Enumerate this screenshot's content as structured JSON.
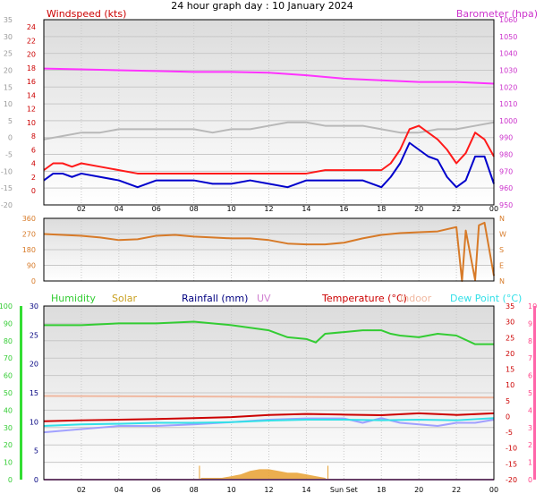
{
  "title": "24 hour graph day : 10 January 2024",
  "colors": {
    "windspeed": "#ff1a1a",
    "windavg": "#0000cc",
    "barometer": "#ff33ff",
    "tempapp": "#b8b8b8",
    "winddir": "#d77a28",
    "humidity": "#33cc33",
    "solar": "#e8a030",
    "rainfall": "#000080",
    "uv": "#d080d0",
    "temperature": "#cc0000",
    "indoor": "#f0b8a0",
    "dewpoint": "#33e0e8",
    "tempblue": "#a0a0ff"
  },
  "x_ticks": [
    "02",
    "04",
    "06",
    "08",
    "10",
    "12",
    "14",
    "16",
    "18",
    "20",
    "22",
    "00"
  ],
  "chart_data": [
    {
      "type": "line",
      "title": "Windspeed (kts) / Barometer (hpa)",
      "left_label": "Windspeed (kts)",
      "right_label": "Barometer (hpa)",
      "outer_left_ticks": [
        "35",
        "30",
        "25",
        "20",
        "15",
        "10",
        "5",
        "0",
        "-5",
        "-10",
        "-15",
        "-20"
      ],
      "inner_left_ticks": [
        "24",
        "22",
        "20",
        "18",
        "16",
        "14",
        "12",
        "10",
        "8",
        "6",
        "4",
        "2",
        "0"
      ],
      "right_ticks": [
        "1060",
        "1050",
        "1040",
        "1030",
        "1020",
        "1010",
        "1000",
        "990",
        "980",
        "970",
        "960",
        "950"
      ],
      "y_range_kts": [
        0,
        25
      ],
      "y_range_hpa": [
        950,
        1060
      ],
      "series": [
        {
          "name": "Barometer",
          "axis": "hpa",
          "x": [
            0,
            2,
            4,
            6,
            8,
            10,
            12,
            14,
            16,
            18,
            20,
            22,
            24
          ],
          "values": [
            1031,
            1030.5,
            1030,
            1029.5,
            1029,
            1029,
            1028.5,
            1027,
            1025,
            1024,
            1023,
            1023,
            1022
          ]
        },
        {
          "name": "Temp (grey)",
          "axis": "kts",
          "x": [
            0,
            1,
            2,
            3,
            4,
            5,
            6,
            7,
            8,
            9,
            10,
            11,
            12,
            13,
            14,
            15,
            16,
            17,
            18,
            19,
            20,
            21,
            22,
            23,
            24
          ],
          "values": [
            7.5,
            8,
            8.5,
            8.5,
            9,
            9,
            9,
            9,
            9,
            8.5,
            9,
            9,
            9.5,
            10,
            10,
            9.5,
            9.5,
            9.5,
            9,
            8.5,
            8.5,
            9,
            9,
            9.5,
            10
          ]
        },
        {
          "name": "Wind gust",
          "axis": "kts",
          "x": [
            0,
            0.5,
            1,
            1.5,
            2,
            3,
            4,
            5,
            6,
            7,
            8,
            9,
            10,
            11,
            12,
            13,
            14,
            15,
            16,
            17,
            18,
            18.5,
            19,
            19.5,
            20,
            20.5,
            21,
            21.5,
            22,
            22.5,
            23,
            23.5,
            24
          ],
          "values": [
            3,
            4,
            4,
            3.5,
            4,
            3.5,
            3,
            2.5,
            2.5,
            2.5,
            2.5,
            2.5,
            2.5,
            2.5,
            2.5,
            2.5,
            2.5,
            3,
            3,
            3,
            3,
            4,
            6,
            9,
            9.5,
            8.5,
            7.5,
            6,
            4,
            5.5,
            8.5,
            7.5,
            5
          ]
        },
        {
          "name": "Wind average",
          "axis": "kts",
          "x": [
            0,
            0.5,
            1,
            1.5,
            2,
            3,
            4,
            5,
            6,
            7,
            8,
            9,
            10,
            11,
            12,
            13,
            14,
            15,
            16,
            17,
            18,
            18.5,
            19,
            19.5,
            20,
            20.5,
            21,
            21.5,
            22,
            22.5,
            23,
            23.5,
            24
          ],
          "values": [
            1.5,
            2.5,
            2.5,
            2,
            2.5,
            2,
            1.5,
            0.5,
            1.5,
            1.5,
            1.5,
            1,
            1,
            1.5,
            1,
            0.5,
            1.5,
            1.5,
            1.5,
            1.5,
            0.5,
            2,
            4,
            7,
            6,
            5,
            4.5,
            2,
            0.5,
            1.5,
            5,
            5,
            1
          ]
        }
      ]
    },
    {
      "type": "line",
      "title": "Wind direction",
      "left_ticks": [
        "360",
        "270",
        "180",
        "90",
        "0"
      ],
      "right_ticks": [
        "N",
        "W",
        "S",
        "E",
        "N"
      ],
      "y_range": [
        0,
        360
      ],
      "series": [
        {
          "name": "Direction",
          "x": [
            0,
            1,
            2,
            3,
            4,
            5,
            6,
            7,
            8,
            9,
            10,
            11,
            12,
            13,
            14,
            15,
            16,
            17,
            18,
            19,
            20,
            21,
            22,
            22.3,
            22.5,
            23,
            23.2,
            23.5,
            24
          ],
          "values": [
            270,
            265,
            260,
            250,
            235,
            240,
            260,
            265,
            255,
            250,
            245,
            245,
            235,
            215,
            210,
            210,
            220,
            245,
            265,
            275,
            280,
            285,
            310,
            0,
            290,
            5,
            320,
            335,
            30
          ]
        }
      ]
    },
    {
      "type": "line",
      "title": "Humidity / Solar / Rainfall / UV / Temperature / Indoor / Dew Point",
      "labels": [
        "Humidity",
        "Solar",
        "Rainfall (mm)",
        "UV",
        "Temperature (°C)",
        "Indoor",
        "Dew Point (°C)"
      ],
      "left_outer_ticks": [
        "100",
        "90",
        "80",
        "70",
        "60",
        "50",
        "40",
        "30",
        "20",
        "10",
        "0"
      ],
      "left_inner_ticks": [
        "30",
        "25",
        "20",
        "15",
        "10",
        "5",
        "0"
      ],
      "right_inner_ticks": [
        "35",
        "30",
        "25",
        "20",
        "15",
        "10",
        "5",
        "0",
        "-5",
        "-10",
        "-15",
        "-20"
      ],
      "right_outer_ticks": [
        "10",
        "9",
        "8",
        "7",
        "6",
        "5",
        "4",
        "3",
        "2",
        "1",
        "0"
      ],
      "annotation": "Sun Set",
      "x_ticks_with_sunset": [
        "02",
        "04",
        "06",
        "08",
        "10",
        "12",
        "14",
        "Sun Set",
        "18",
        "20",
        "22",
        "00"
      ],
      "series": [
        {
          "name": "Humidity",
          "axis": "pct",
          "x": [
            0,
            2,
            4,
            6,
            8,
            10,
            12,
            13,
            14,
            14.5,
            15,
            16,
            17,
            18,
            18.5,
            19,
            20,
            21,
            22,
            23,
            24
          ],
          "values": [
            89,
            89,
            90,
            90,
            91,
            89,
            86,
            82,
            81,
            79,
            84,
            85,
            86,
            86,
            84,
            83,
            82,
            84,
            83,
            78,
            78
          ]
        },
        {
          "name": "Indoor",
          "axis": "c",
          "x": [
            0,
            24
          ],
          "values": [
            6.5,
            6
          ]
        },
        {
          "name": "Temperature",
          "axis": "c",
          "x": [
            0,
            2,
            4,
            6,
            8,
            10,
            12,
            14,
            16,
            18,
            20,
            22,
            24
          ],
          "values": [
            -1.5,
            -1.2,
            -1,
            -0.8,
            -0.5,
            -0.2,
            0.5,
            0.8,
            0.6,
            0.4,
            1,
            0.5,
            1
          ]
        },
        {
          "name": "Dew Point",
          "axis": "c",
          "x": [
            0,
            2,
            4,
            6,
            8,
            10,
            12,
            14,
            16,
            18,
            20,
            22,
            24
          ],
          "values": [
            -3,
            -2.5,
            -2.3,
            -2,
            -2,
            -1.8,
            -1.3,
            -1,
            -1,
            -1.2,
            -1,
            -1.2,
            -0.5
          ]
        },
        {
          "name": "Temperature (blue)",
          "axis": "c",
          "x": [
            0,
            2,
            4,
            6,
            8,
            10,
            12,
            14,
            16,
            17,
            18,
            19,
            20,
            21,
            22,
            23,
            24
          ],
          "values": [
            -5,
            -4,
            -3,
            -3,
            -2.5,
            -1.8,
            -1,
            -0.6,
            -0.6,
            -2,
            -0.5,
            -2,
            -2.5,
            -3,
            -2,
            -2,
            -1
          ]
        },
        {
          "name": "Solar",
          "axis": "pct",
          "x": [
            8.3,
            8.4,
            9.5,
            10,
            10.5,
            11,
            11.5,
            12,
            12.5,
            13,
            13.5,
            14,
            14.5,
            15,
            15.1
          ],
          "values": [
            0,
            1,
            1,
            2,
            3,
            5,
            6,
            6,
            5,
            4,
            4,
            3,
            2,
            1,
            0
          ]
        },
        {
          "name": "UV",
          "axis": "c",
          "x": [
            0,
            24
          ],
          "values": [
            -20,
            -20
          ]
        }
      ]
    }
  ]
}
